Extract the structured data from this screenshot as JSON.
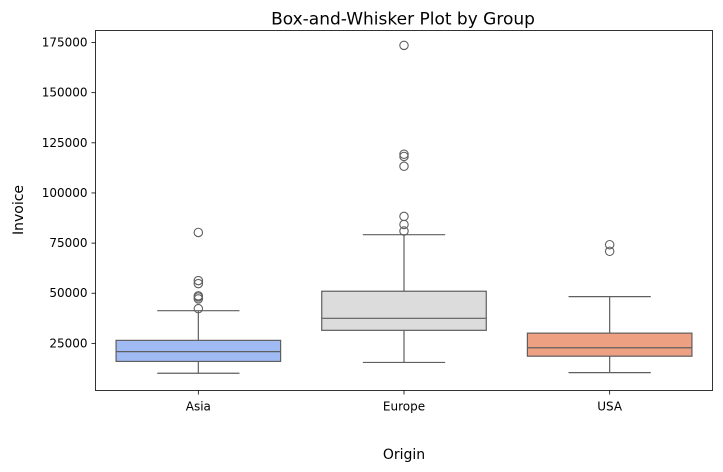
{
  "chart_data": {
    "type": "box",
    "title": "Box-and-Whisker Plot by Group",
    "xlabel": "Origin",
    "ylabel": "Invoice",
    "ylim": [
      1500,
      181000
    ],
    "yticks": [
      25000,
      50000,
      75000,
      100000,
      125000,
      150000,
      175000
    ],
    "ytick_labels": [
      "25000",
      "50000",
      "75000",
      "100000",
      "125000",
      "150000",
      "175000"
    ],
    "grid": false,
    "categories": [
      "Asia",
      "Europe",
      "USA"
    ],
    "boxes": [
      {
        "category": "Asia",
        "color": "#a0baf4",
        "whisker_low": 10100,
        "q1": 16000,
        "median": 20900,
        "q3": 26500,
        "whisker_high": 41300,
        "outliers": [
          42300,
          47200,
          48100,
          48700,
          54800,
          56300,
          80300
        ]
      },
      {
        "category": "Europe",
        "color": "#dcdcdc",
        "whisker_low": 15500,
        "q1": 31500,
        "median": 37500,
        "q3": 51000,
        "whisker_high": 79200,
        "outliers": [
          81000,
          84300,
          88300,
          113300,
          118200,
          119300,
          173600
        ]
      },
      {
        "category": "USA",
        "color": "#eea082",
        "whisker_low": 10400,
        "q1": 18600,
        "median": 22800,
        "q3": 30100,
        "whisker_high": 48300,
        "outliers": [
          70900,
          74200
        ]
      }
    ]
  }
}
